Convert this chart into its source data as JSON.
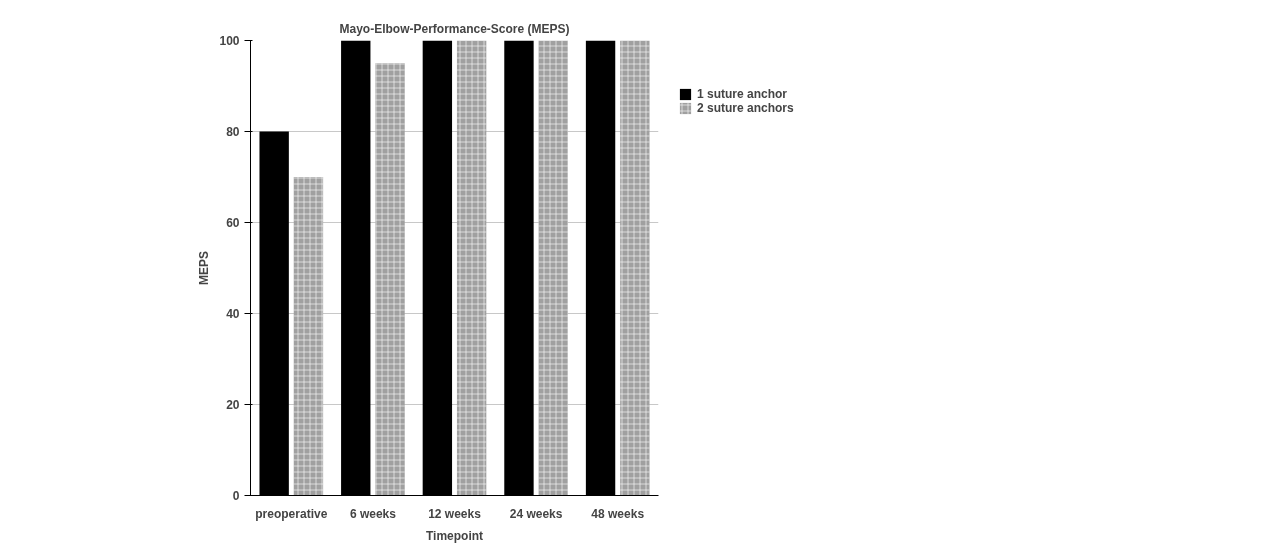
{
  "chart_data": {
    "type": "bar",
    "title": "Mayo-Elbow-Performance-Score (MEPS)",
    "xlabel": "Timepoint",
    "ylabel": "MEPS",
    "categories": [
      "preoperative",
      "6 weeks",
      "12 weeks",
      "24 weeks",
      "48 weeks"
    ],
    "series": [
      {
        "name": "1 suture anchor",
        "color": "#000000",
        "values": [
          80,
          100,
          100,
          100,
          100
        ]
      },
      {
        "name": "2 suture anchors",
        "color": "#a0a0a0",
        "values": [
          70,
          95,
          100,
          100,
          100
        ]
      }
    ],
    "ylim": [
      0,
      100
    ],
    "yticks": [
      0,
      20,
      40,
      60,
      80,
      100
    ],
    "grid": "y",
    "legend": "top right"
  }
}
